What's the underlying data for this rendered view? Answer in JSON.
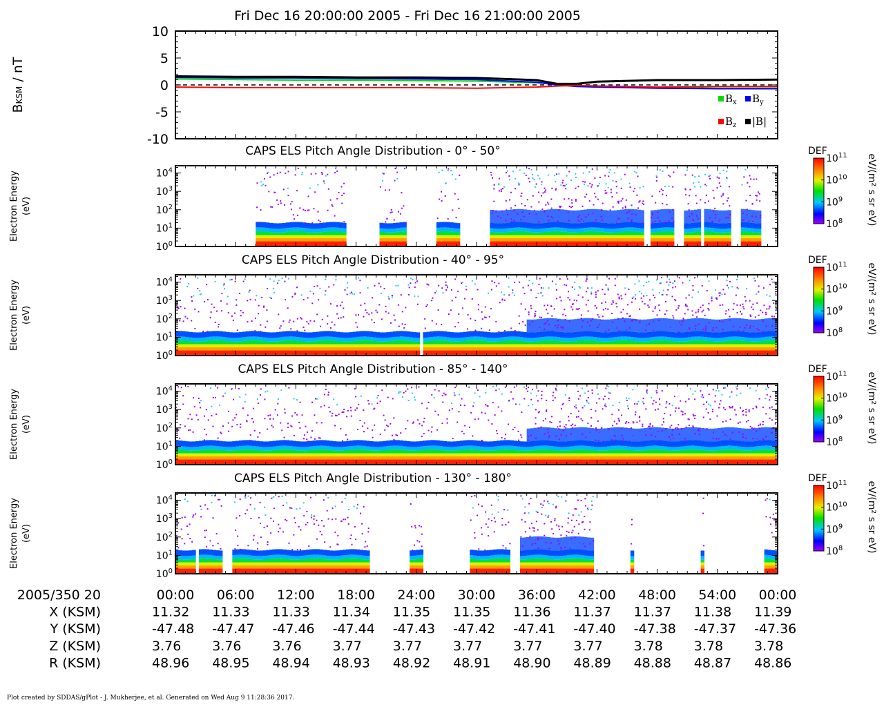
{
  "title": "Fri Dec 16 20:00:00 2005 - Fri Dec 16 21:00:00 2005",
  "credit": "Plot created by SDDAS/gPlot - J. Mukherjee, et al.  Generated on Wed Aug 9 11:28:36 2017.",
  "chart_data": [
    {
      "type": "line",
      "panel": "magnetic-field",
      "ylabel_main": "B",
      "ylabel_sub": "KSM",
      "ylabel_unit": " / nT",
      "ylim": [
        -10,
        10
      ],
      "yticks": [
        10,
        5,
        0,
        -5,
        -10
      ],
      "x_minutes": [
        0,
        6,
        12,
        18,
        24,
        30,
        36,
        38,
        40,
        42,
        48,
        54,
        60
      ],
      "series": [
        {
          "name": "B",
          "sub": "x",
          "color": "#00dd00",
          "values": [
            1.1,
            1.0,
            0.9,
            0.9,
            0.8,
            0.7,
            0.4,
            0.1,
            -0.1,
            -0.2,
            -0.5,
            -0.6,
            -0.6
          ]
        },
        {
          "name": "B",
          "sub": "y",
          "color": "#0000ff",
          "values": [
            1.4,
            1.3,
            1.3,
            1.2,
            1.1,
            1.0,
            0.5,
            0.0,
            -0.3,
            -0.4,
            -0.6,
            -0.7,
            -0.7
          ]
        },
        {
          "name": "B",
          "sub": "z",
          "color": "#ff0000",
          "values": [
            -0.4,
            -0.5,
            -0.5,
            -0.5,
            -0.5,
            -0.6,
            -0.4,
            -0.2,
            -0.1,
            -0.2,
            -0.4,
            -0.3,
            -0.3
          ]
        },
        {
          "name": "|B|",
          "sub": "",
          "color": "#000000",
          "values": [
            1.6,
            1.5,
            1.5,
            1.4,
            1.4,
            1.3,
            0.9,
            0.2,
            0.2,
            0.6,
            0.9,
            0.9,
            1.0
          ]
        }
      ],
      "reference_line": 0
    },
    {
      "type": "heatmap",
      "title": "CAPS ELS Pitch Angle Distribution - 0° - 50°",
      "ylabel": [
        "Electron Energy",
        "(eV)"
      ],
      "ylim": [
        1,
        25000
      ],
      "yscale": "log",
      "colorbar": {
        "label": "DEF",
        "unit": "eV/(m² s sr eV)",
        "range": [
          100000000,
          100000000000
        ],
        "ticks": [
          11,
          10,
          9,
          8
        ]
      },
      "data_minutes": [
        [
          8,
          17
        ],
        [
          20.5,
          23
        ],
        [
          26,
          28.3
        ],
        [
          31.5,
          46.5
        ],
        [
          47.3,
          49.8
        ],
        [
          50.8,
          52.3
        ],
        [
          52.8,
          55.3
        ],
        [
          56.2,
          58.3
        ],
        [
          60,
          60
        ]
      ],
      "dense": [
        [
          31.5,
          60
        ]
      ]
    },
    {
      "type": "heatmap",
      "title": "CAPS ELS Pitch Angle Distribution - 40° - 95°",
      "ylabel": [
        "Electron Energy",
        "(eV)"
      ],
      "ylim": [
        1,
        25000
      ],
      "yscale": "log",
      "colorbar": {
        "label": "DEF",
        "unit": "eV/(m² s sr eV)",
        "range": [
          100000000,
          100000000000
        ],
        "ticks": [
          11,
          10,
          9,
          8
        ]
      },
      "data_minutes": [
        [
          0,
          24.3
        ],
        [
          24.7,
          60
        ]
      ],
      "dense": [
        [
          35,
          60
        ]
      ]
    },
    {
      "type": "heatmap",
      "title": "CAPS ELS Pitch Angle Distribution - 85° - 140°",
      "ylabel": [
        "Electron Energy",
        "(eV)"
      ],
      "ylim": [
        1,
        25000
      ],
      "yscale": "log",
      "colorbar": {
        "label": "DEF",
        "unit": "eV/(m² s sr eV)",
        "range": [
          100000000,
          100000000000
        ],
        "ticks": [
          11,
          10,
          9,
          8
        ]
      },
      "data_minutes": [
        [
          0,
          60
        ]
      ],
      "dense": [
        [
          35,
          60
        ]
      ]
    },
    {
      "type": "heatmap",
      "title": "CAPS ELS Pitch Angle Distribution - 130° - 180°",
      "ylabel": [
        "Electron Energy",
        "(eV)"
      ],
      "ylim": [
        1,
        25000
      ],
      "yscale": "log",
      "colorbar": {
        "label": "DEF",
        "unit": "eV/(m² s sr eV)",
        "range": [
          100000000,
          100000000000
        ],
        "ticks": [
          11,
          10,
          9,
          8
        ]
      },
      "data_minutes": [
        [
          0,
          2
        ],
        [
          2.5,
          4.8
        ],
        [
          5.8,
          19.3
        ],
        [
          23.3,
          24.8
        ],
        [
          29.3,
          33.3
        ],
        [
          34.3,
          41.8
        ],
        [
          45.3,
          45.8
        ],
        [
          52.3,
          52.8
        ],
        [
          58.8,
          60
        ]
      ],
      "dense": [
        [
          34.3,
          41.8
        ]
      ]
    }
  ],
  "time_axis": {
    "date_label": "2005/350 20",
    "ticks": [
      "00:00",
      "06:00",
      "12:00",
      "18:00",
      "24:00",
      "30:00",
      "36:00",
      "42:00",
      "48:00",
      "54:00",
      "00:00"
    ]
  },
  "ephemeris": [
    {
      "label": "X (KSM)",
      "values": [
        "11.32",
        "11.33",
        "11.33",
        "11.34",
        "11.35",
        "11.35",
        "11.36",
        "11.37",
        "11.37",
        "11.38",
        "11.39"
      ]
    },
    {
      "label": "Y (KSM)",
      "values": [
        "-47.48",
        "-47.47",
        "-47.46",
        "-47.44",
        "-47.43",
        "-47.42",
        "-47.41",
        "-47.40",
        "-47.38",
        "-47.37",
        "-47.36"
      ]
    },
    {
      "label": "Z (KSM)",
      "values": [
        "3.76",
        "3.76",
        "3.76",
        "3.77",
        "3.77",
        "3.77",
        "3.77",
        "3.77",
        "3.78",
        "3.78",
        "3.78"
      ]
    },
    {
      "label": "R (KSM)",
      "values": [
        "48.96",
        "48.95",
        "48.94",
        "48.93",
        "48.92",
        "48.91",
        "48.90",
        "48.89",
        "48.88",
        "48.87",
        "48.86"
      ]
    }
  ]
}
